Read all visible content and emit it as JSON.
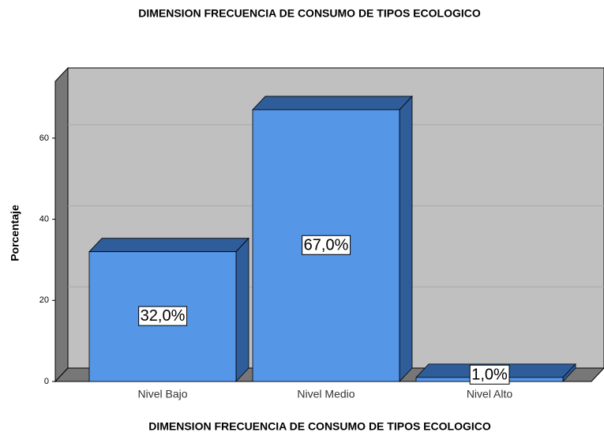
{
  "chart_data": {
    "type": "bar3d",
    "title": "DIMENSION FRECUENCIA DE CONSUMO DE TIPOS ECOLOGICO",
    "x_label": "DIMENSION FRECUENCIA DE CONSUMO DE TIPOS ECOLOGICO",
    "y_label": "Porcentaje",
    "categories": [
      "Nivel Bajo",
      "Nivel Medio",
      "Nivel Alto"
    ],
    "values": [
      32,
      67,
      1
    ],
    "value_labels": [
      "32,0%",
      "67,0%",
      "1,0%"
    ],
    "color": "#5596e6",
    "ylim": [
      0,
      74
    ],
    "yticks": [
      0,
      20,
      40,
      60
    ],
    "grid": true
  }
}
